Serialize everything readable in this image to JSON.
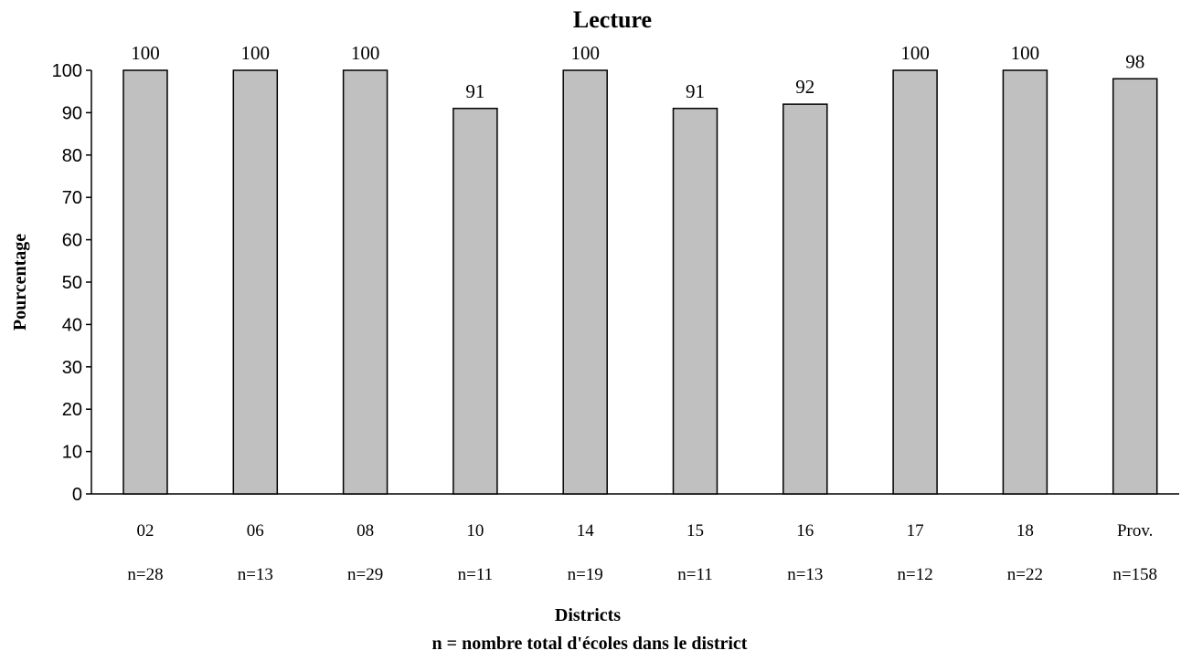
{
  "chart_data": {
    "type": "bar",
    "title": "Lecture",
    "xlabel": "Districts",
    "xlabel_note": "n = nombre total d'écoles dans le district",
    "ylabel": "Pourcentage",
    "ylim": [
      0,
      100
    ],
    "yticks": [
      0,
      10,
      20,
      30,
      40,
      50,
      60,
      70,
      80,
      90,
      100
    ],
    "grid": false,
    "legend": "none",
    "categories": [
      "02",
      "06",
      "08",
      "10",
      "14",
      "15",
      "16",
      "17",
      "18",
      "Prov."
    ],
    "counts": [
      "n=28",
      "n=13",
      "n=29",
      "n=11",
      "n=19",
      "n=11",
      "n=13",
      "n=12",
      "n=22",
      "n=158"
    ],
    "values": [
      100,
      100,
      100,
      91,
      100,
      91,
      92,
      100,
      100,
      98
    ],
    "data_labels": [
      "100",
      "100",
      "100",
      "91",
      "100",
      "91",
      "92",
      "100",
      "100",
      "98"
    ],
    "bar_color": "#c0c0c0",
    "bar_edge_color": "#000000"
  }
}
